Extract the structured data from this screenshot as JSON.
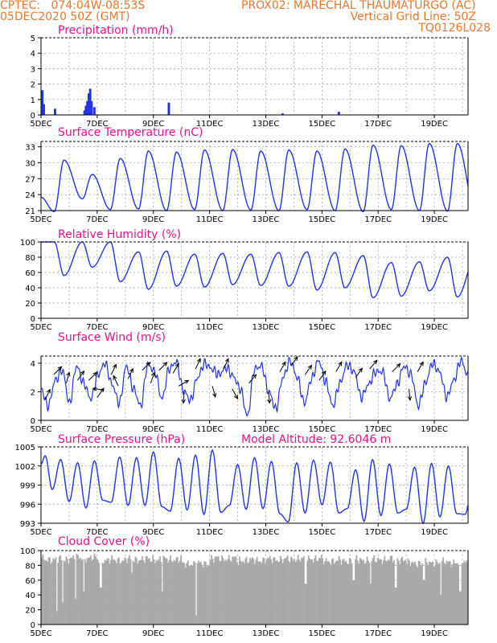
{
  "header": {
    "left_line1": "CPTEC:   074:04W-08:53S",
    "left_line2": "05DEC2020 50Z (GMT)",
    "right_line1": "PROX02: MARECHAL THAUMATURGO (AC)",
    "right_line2": "Vertical Grid Line: 50Z",
    "right_line3": "TQ0126L028"
  },
  "x_tick_labels": [
    "5DEC",
    "7DEC",
    "9DEC",
    "11DEC",
    "13DEC",
    "15DEC",
    "17DEC",
    "19DEC"
  ],
  "chart_data": [
    {
      "type": "bar",
      "title": "Precipitation (mm/h)",
      "ylim": [
        0,
        5
      ],
      "yticks": [
        "0",
        "1",
        "2",
        "3",
        "4",
        "5"
      ],
      "color": "#2233ee",
      "x_days": [
        0.05,
        0.1,
        0.5,
        1.55,
        1.6,
        1.65,
        1.7,
        1.75,
        1.8,
        1.9,
        4.55,
        8.6,
        10.6
      ],
      "values": [
        1.6,
        0.7,
        0.4,
        0.3,
        0.6,
        0.9,
        1.4,
        1.7,
        0.9,
        0.5,
        0.8,
        0.1,
        0.2
      ]
    },
    {
      "type": "line",
      "title": "Surface Temperature (nC)",
      "ylim": [
        21,
        34
      ],
      "yticks": [
        "21",
        "24",
        "27",
        "30",
        "33"
      ],
      "color": "#2233ee",
      "start": 23.5,
      "daily_min": [
        20.8,
        23.2,
        21.2,
        21.3,
        21.0,
        21.2,
        21.0,
        21.1,
        21.0,
        21.2,
        21.0,
        20.8,
        21.2,
        21.0,
        20.9
      ],
      "daily_max": [
        30.5,
        27.8,
        30.8,
        32.2,
        32.0,
        32.4,
        32.5,
        32.2,
        32.4,
        32.2,
        32.6,
        33.3,
        33.2,
        33.6,
        33.6
      ]
    },
    {
      "type": "line",
      "title": "Relative Humidity (%)",
      "ylim": [
        0,
        100
      ],
      "yticks": [
        "0",
        "20",
        "40",
        "60",
        "80",
        "100"
      ],
      "color": "#2233ee",
      "start": 100,
      "daily_max": [
        100,
        100,
        100,
        87,
        88,
        84,
        85,
        84,
        86,
        87,
        86,
        82,
        73,
        74,
        80
      ],
      "daily_min": [
        56,
        67,
        48,
        38,
        42,
        41,
        44,
        43,
        42,
        37,
        40,
        27,
        29,
        36,
        28
      ]
    },
    {
      "type": "line",
      "title": "Surface Wind (m/s)",
      "ylim": [
        0,
        4.5
      ],
      "yticks": [
        "0",
        "2",
        "4"
      ],
      "color": "#2233ee",
      "speeds": [
        2.2,
        1.0,
        2.8,
        3.5,
        1.2,
        3.8,
        2.6,
        1.5,
        3.2,
        4.0,
        2.5,
        1.2,
        3.8,
        2.2,
        1.0,
        3.9,
        3.4,
        1.5,
        3.6,
        4.1,
        2.1,
        1.4,
        3.0,
        4.0,
        3.6,
        3.2,
        3.7,
        3.1,
        2.2,
        0.3,
        3.6,
        3.8,
        2.0,
        0.8,
        3.0,
        4.2,
        3.0,
        1.2,
        2.9,
        4.2,
        2.7,
        1.0,
        2.6,
        3.9,
        3.4,
        1.6,
        2.5,
        3.4,
        3.4,
        1.5,
        2.5,
        3.8,
        3.2,
        1.0,
        2.6,
        4.0,
        3.4,
        1.6,
        2.8,
        4.2,
        3.1
      ],
      "arrows": [
        [
          0.15,
          1.45,
          25
        ],
        [
          0.45,
          3.2,
          45
        ],
        [
          0.9,
          2.6,
          15
        ],
        [
          1.3,
          2.8,
          35
        ],
        [
          1.7,
          2.8,
          45
        ],
        [
          2.0,
          1.6,
          35
        ],
        [
          2.25,
          2.1,
          280
        ],
        [
          2.5,
          3.2,
          25
        ],
        [
          2.75,
          2.4,
          335
        ],
        [
          3.1,
          2.9,
          25
        ],
        [
          3.6,
          3.5,
          45
        ],
        [
          3.9,
          2.6,
          20
        ],
        [
          4.2,
          3.5,
          45
        ],
        [
          4.7,
          3.3,
          30
        ],
        [
          4.9,
          2.4,
          60
        ],
        [
          5.1,
          2.0,
          185
        ],
        [
          5.5,
          3.6,
          25
        ],
        [
          6.1,
          2.4,
          165
        ],
        [
          6.5,
          3.6,
          25
        ],
        [
          6.8,
          2.2,
          150
        ],
        [
          7.4,
          2.6,
          40
        ],
        [
          8.1,
          2.0,
          175
        ],
        [
          8.5,
          3.4,
          30
        ],
        [
          8.9,
          3.8,
          35
        ],
        [
          9.4,
          3.2,
          35
        ],
        [
          9.9,
          2.8,
          35
        ],
        [
          10.5,
          3.4,
          30
        ],
        [
          11.2,
          3.0,
          35
        ],
        [
          11.7,
          3.6,
          40
        ],
        [
          12.5,
          3.4,
          45
        ],
        [
          13.1,
          2.2,
          175
        ],
        [
          13.4,
          3.4,
          30
        ]
      ]
    },
    {
      "type": "line",
      "title": "Surface Pressure (hPa)",
      "subtitle": "Model Altitude: 92.6046 m",
      "ylim": [
        993,
        1005
      ],
      "yticks": [
        "993",
        "996",
        "999",
        "1002",
        "1005"
      ],
      "color": "#2233ee",
      "start": 1002.3,
      "first_peak": 1003.6,
      "daily_semi": [
        [
          998.3,
          1003.0,
          996.4,
          1002.5,
          995.4,
          1002.8,
          996.6
        ],
        [
          996.3,
          1003.4,
          995.8,
          1003.3,
          995.8,
          1004.2,
          995.6
        ],
        [
          994.9,
          1003.2,
          995.1,
          1003.7,
          994.4,
          1004.5,
          994.7
        ],
        [
          995.8,
          1002.2,
          995.2,
          1003.3,
          995.3,
          1002.7,
          994.5
        ],
        [
          993.2,
          1002.5,
          994.6,
          1002.9,
          995.9,
          1002.6,
          994.6
        ],
        [
          995.3,
          1001.4,
          993.3,
          1003.0,
          994.2,
          1002.3,
          994.6
        ],
        [
          995.2,
          1001.8,
          993.0,
          1002.4,
          994.0,
          1002.0,
          994.5
        ],
        [
          994.4,
          1001.1,
          993.0,
          1000.2,
          996.0,
          999.0,
          993.0
        ]
      ]
    },
    {
      "type": "area",
      "title": "Cloud Cover (%)",
      "ylim": [
        0,
        100
      ],
      "yticks": [
        "0",
        "20",
        "40",
        "60",
        "80",
        "100"
      ],
      "color": "#a9a9a9",
      "daily_level": [
        90,
        92,
        89,
        90,
        90,
        84,
        91,
        89,
        90,
        91,
        88,
        89,
        90,
        85,
        86
      ],
      "dips": [
        [
          0.55,
          18
        ],
        [
          0.75,
          30
        ],
        [
          1.2,
          35
        ],
        [
          1.5,
          45
        ],
        [
          2.1,
          50
        ],
        [
          3.2,
          70
        ],
        [
          4.3,
          45
        ],
        [
          5.5,
          12
        ],
        [
          7.0,
          80
        ],
        [
          9.4,
          55
        ],
        [
          11.1,
          60
        ],
        [
          11.7,
          55
        ],
        [
          12.6,
          50
        ],
        [
          13.6,
          60
        ],
        [
          14.2,
          40
        ],
        [
          14.9,
          45
        ]
      ]
    }
  ]
}
